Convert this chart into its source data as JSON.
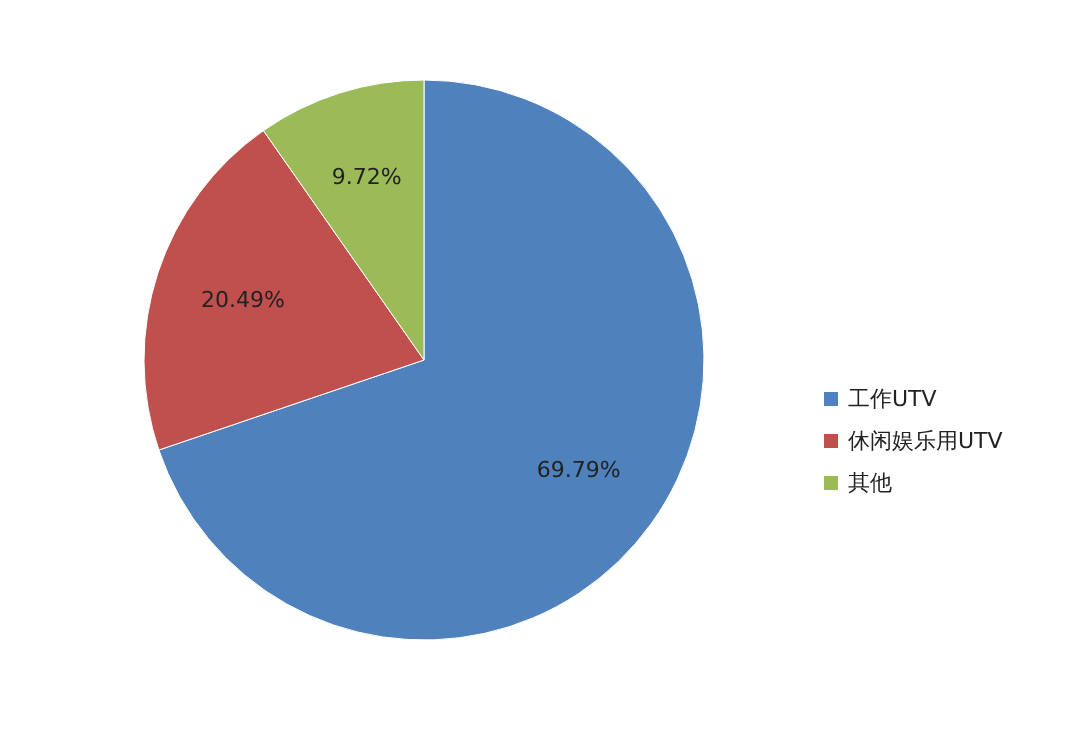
{
  "chart_data": {
    "type": "pie",
    "categories": [
      "工作UTV",
      "休闲娱乐用UTV",
      "其他"
    ],
    "values": [
      69.79,
      20.49,
      9.72
    ],
    "colors": [
      "#4f81bd",
      "#c0504d",
      "#9bbb59"
    ],
    "value_labels": [
      "69.79%",
      "20.49%",
      "9.72%"
    ],
    "legend": "right"
  }
}
